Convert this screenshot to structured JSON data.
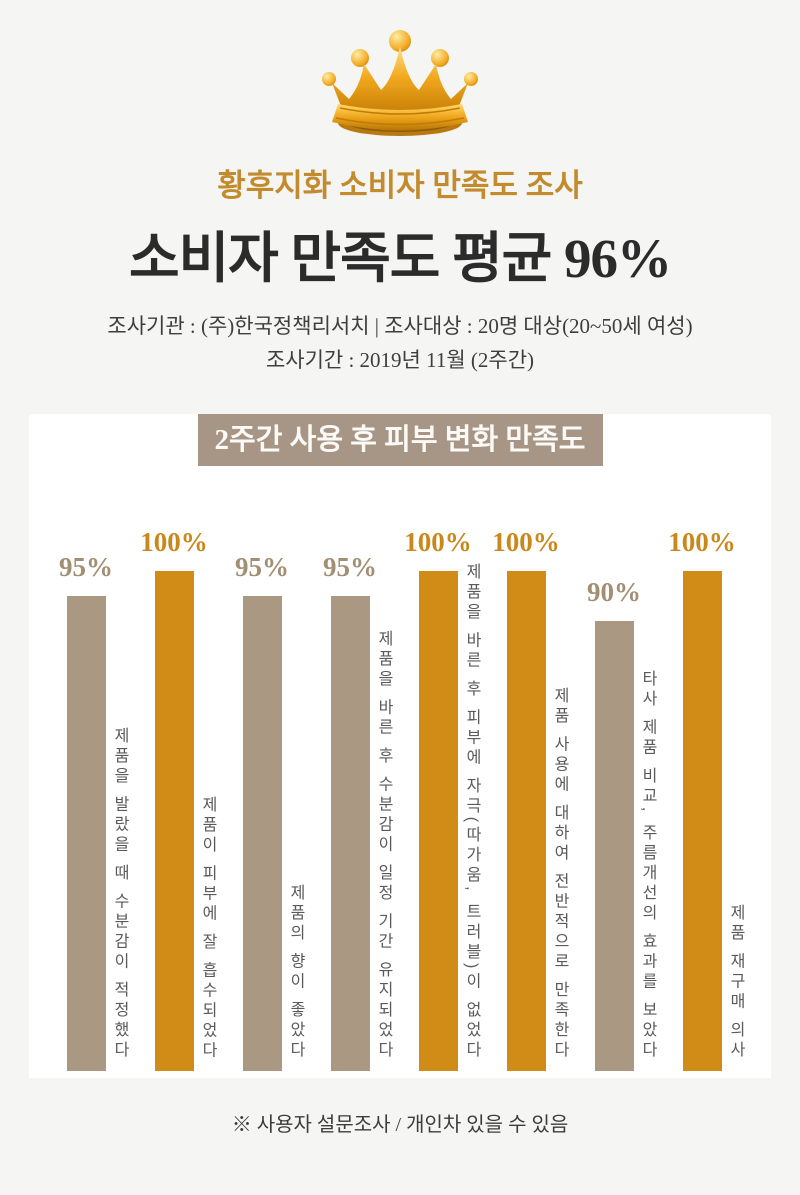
{
  "colors": {
    "page_bg": "#f5f5f4",
    "panel_bg": "#ffffff",
    "subtitle_gold": "#c28b2e",
    "title_ink": "#2b2b2b",
    "info_ink": "#3e3e3e",
    "banner_bg": "#a79585",
    "banner_text": "#fbfaf7",
    "bar_tan": "#ab9882",
    "bar_gold": "#d18c17",
    "pct_tan": "#a28e73",
    "pct_gold": "#c9871c",
    "label_ink": "#5a5a5a",
    "footer_ink": "#3c3c3c"
  },
  "header": {
    "crown_icon": "gold-crown",
    "subtitle": "황후지화 소비자 만족도 조사",
    "title": "소비자 만족도 평균 96%",
    "info_line1": "조사기관 : (주)한국정책리서치 | 조사대상 : 20명 대상(20~50세 여성)",
    "info_line2": "조사기간 : 2019년 11월 (2주간)"
  },
  "chart_banner": {
    "label": "2주간 사용 후 피부 변화 만족도"
  },
  "chart_data": {
    "type": "bar",
    "title": "2주간 사용 후 피부 변화 만족도",
    "unit": "%",
    "ylim": [
      0,
      100
    ],
    "grid": false,
    "legend": "none",
    "orientation": "vertical-bars-with-vertical-category-text",
    "categories": [
      "제품을 발랐을 때 수분감이 적정했다",
      "제품이 피부에 잘 흡수되었다",
      "제품의 향이 좋았다",
      "제품을 바른 후 수분감이 일정 기간 유지되었다",
      "제품을 바른 후 피부에 자극(따가움, 트러블)이 없었다",
      "제품 사용에 대하여 전반적으로 만족한다",
      "타사 제품 비교, 주름개선의 효과를 보았다",
      "제품 재구매 의사"
    ],
    "values": [
      95,
      100,
      95,
      95,
      100,
      100,
      90,
      100
    ],
    "value_labels": [
      "95%",
      "100%",
      "95%",
      "95%",
      "100%",
      "100%",
      "90%",
      "100%"
    ],
    "bar_palette": [
      "tan",
      "gold",
      "tan",
      "tan",
      "gold",
      "gold",
      "tan",
      "gold"
    ]
  },
  "footer": {
    "note": "※ 사용자 설문조사 / 개인차 있을 수 있음"
  }
}
